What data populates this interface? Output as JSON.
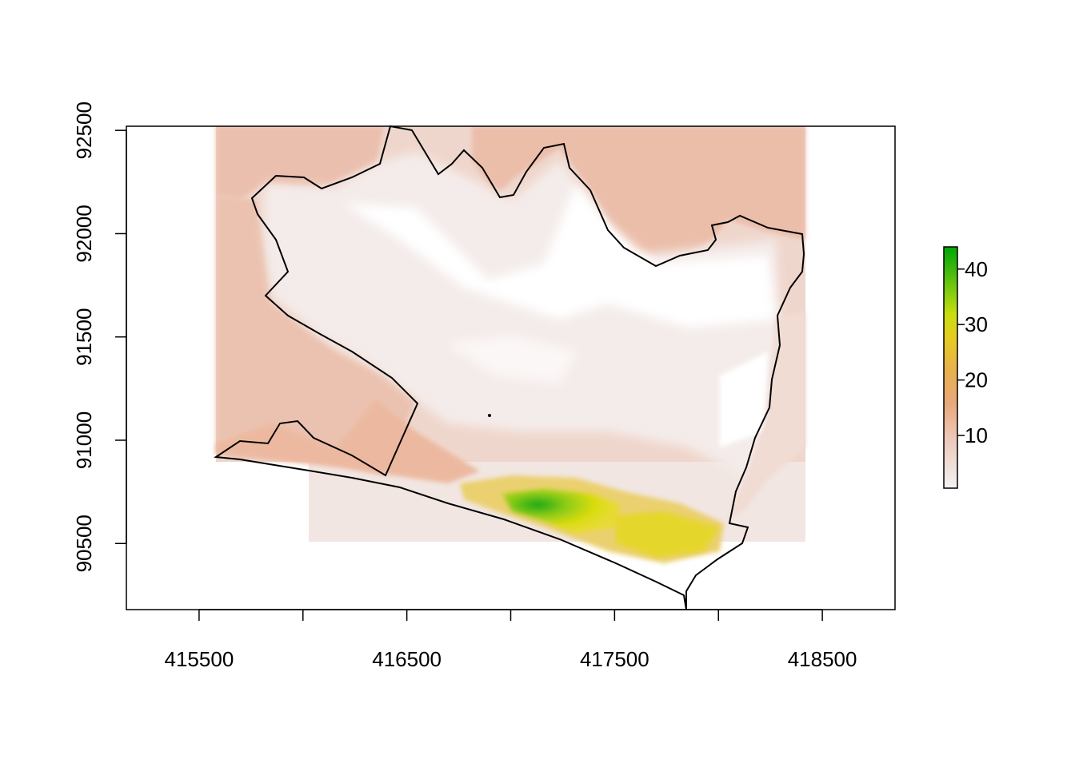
{
  "chart_data": {
    "type": "heatmap",
    "title": "",
    "xlabel": "",
    "ylabel": "",
    "xlim": [
      415150,
      418850
    ],
    "ylim": [
      90180,
      92520
    ],
    "x_ticks": [
      415500,
      416000,
      416500,
      417000,
      417500,
      418000,
      418500
    ],
    "x_tick_labels": [
      "415500",
      "",
      "416500",
      "",
      "417500",
      "",
      "418500"
    ],
    "y_ticks": [
      90500,
      91000,
      91500,
      92000,
      92500
    ],
    "y_tick_labels": [
      "90500",
      "91000",
      "91500",
      "92000",
      "92500"
    ],
    "grid": false,
    "raster_extent": {
      "x": [
        415580,
        418400
      ],
      "y": [
        90520,
        92520
      ]
    },
    "legend": {
      "type": "colorbar",
      "placement": "right",
      "range": [
        0.5,
        44
      ],
      "ticks": [
        10,
        20,
        30,
        40
      ],
      "tick_labels": [
        "10",
        "20",
        "30",
        "40"
      ],
      "colors": [
        "#f2f2f2",
        "#eec9bc",
        "#e8a87a",
        "#e8b24a",
        "#e5cc20",
        "#c9de10",
        "#7ecb10",
        "#33b510",
        "#00a600"
      ]
    },
    "colors": {
      "low": "#f2f2f2",
      "mid": "#e6a77c",
      "high_yellow": "#e6dd0e",
      "max": "#00a600",
      "boundary": "#000000"
    }
  }
}
